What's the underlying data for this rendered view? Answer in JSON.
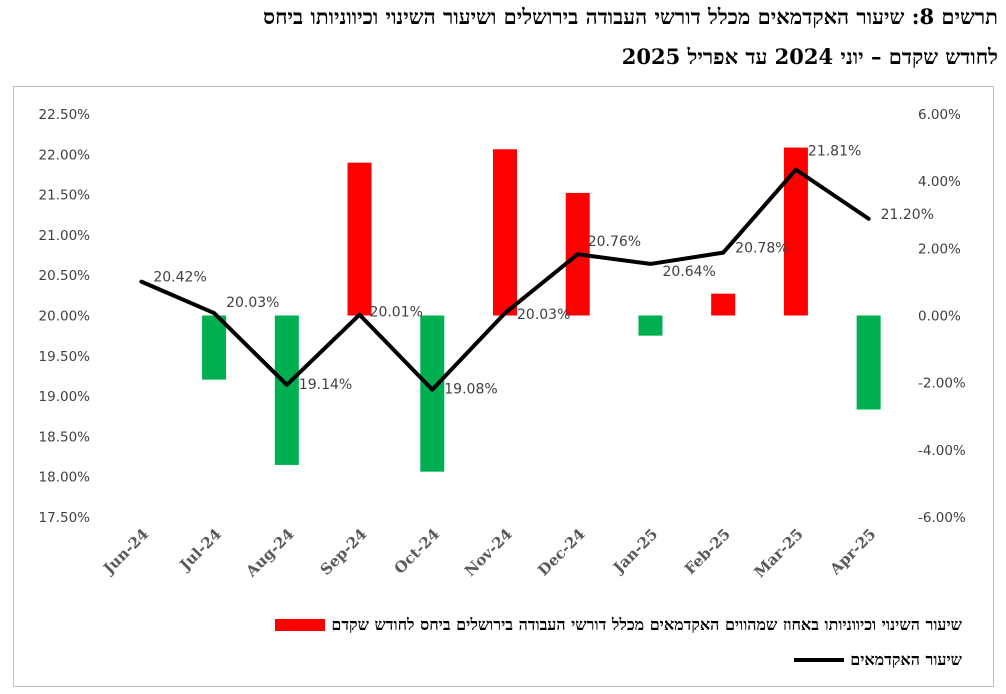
{
  "title": {
    "line1": "תרשים 8: שיעור האקדמאים מכלל דורשי העבודה בירושלים ושיעור השינוי וכיווניותו ביחס",
    "line2": "לחודש שקדם – יוני 2024 עד אפריל 2025"
  },
  "colors": {
    "up_bar": "#ff0000",
    "down_bar": "#00b050",
    "line": "#000000"
  },
  "chart_data": {
    "type": "bar",
    "categories": [
      "Jun-24",
      "Jul-24",
      "Aug-24",
      "Sep-24",
      "Oct-24",
      "Nov-24",
      "Dec-24",
      "Jan-25",
      "Feb-25",
      "Mar-25",
      "Apr-25"
    ],
    "series": [
      {
        "name": "שיעור השינוי וכיווניותו באחוז שמהווים האקדמאים מכלל דורשי העבודה בירושלים ביחס לחודש שקדם",
        "axis": "right",
        "type": "bar",
        "values": [
          null,
          -1.91,
          -4.45,
          4.55,
          -4.65,
          4.95,
          3.65,
          -0.6,
          0.65,
          5.0,
          -2.8
        ]
      },
      {
        "name": "שיעור האקדמאים",
        "axis": "left",
        "type": "line",
        "values": [
          20.42,
          20.03,
          19.14,
          20.01,
          19.08,
          20.03,
          20.76,
          20.64,
          20.78,
          21.81,
          21.2
        ],
        "labels": [
          "20.42%",
          "20.03%",
          "19.14%",
          "20.01%",
          "19.08%",
          "20.03%",
          "20.76%",
          "20.64%",
          "20.78%",
          "21.81%",
          "21.20%"
        ]
      }
    ],
    "y_left": {
      "ylim": [
        17.5,
        22.5
      ],
      "ticks": [
        "17.50%",
        "18.00%",
        "18.50%",
        "19.00%",
        "19.50%",
        "20.00%",
        "20.50%",
        "21.00%",
        "21.50%",
        "22.00%",
        "22.50%"
      ]
    },
    "y_right": {
      "ylim": [
        -6,
        6
      ],
      "ticks": [
        "-6.00%",
        "-4.00%",
        "-2.00%",
        "0.00%",
        "2.00%",
        "4.00%",
        "6.00%"
      ]
    },
    "legend_position": "bottom",
    "grid": false
  }
}
